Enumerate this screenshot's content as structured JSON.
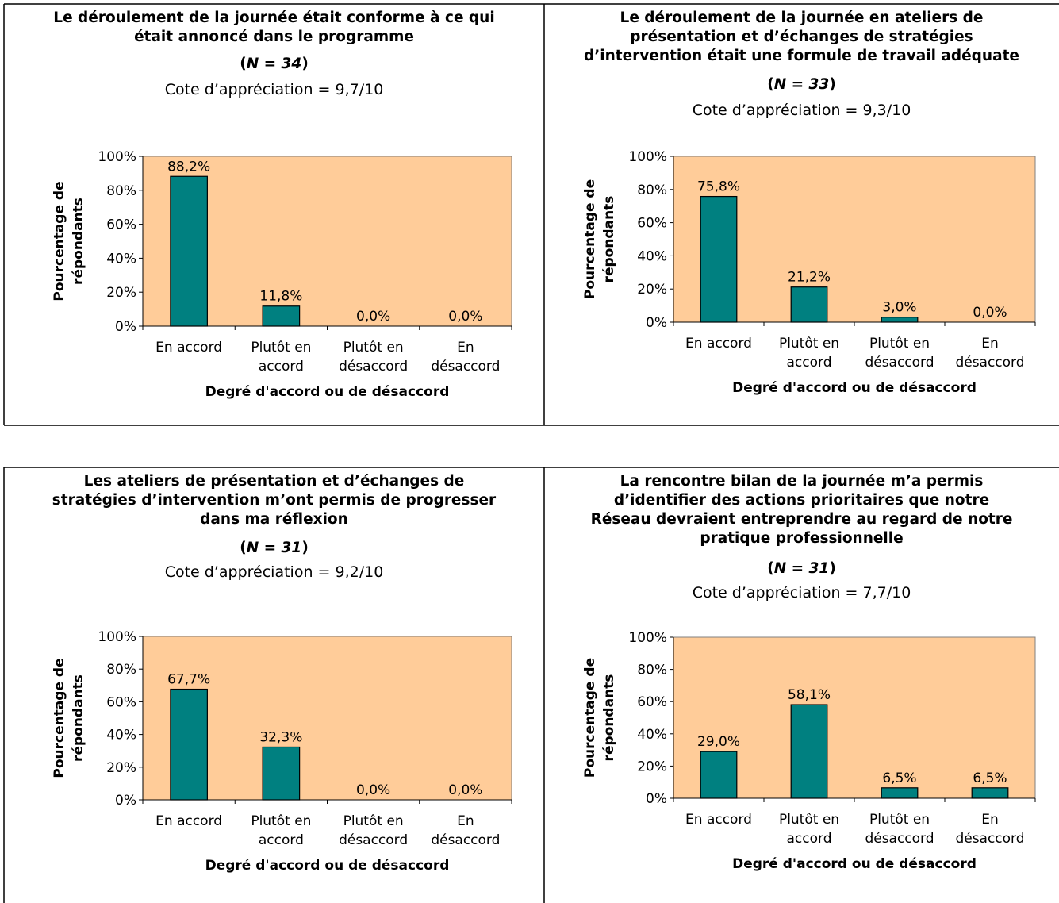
{
  "colors": {
    "plot_bg": "#FFCC99",
    "bar": "#008080",
    "grid_frame": "#808080",
    "border": "#000000"
  },
  "chart_data": [
    {
      "type": "bar",
      "title": "Le déroulement de la journée était conforme à ce qui\nétait annoncé dans le programme",
      "n_open": "(",
      "n_value": "N = 34",
      "n_close": ")",
      "cote": "Cote d’appréciation = 9,7/10",
      "categories": [
        "En accord",
        "Plutôt en\naccord",
        "Plutôt en\ndésaccord",
        "En\ndésaccord"
      ],
      "values": [
        88.2,
        11.8,
        0.0,
        0.0
      ],
      "data_labels": [
        "88,2%",
        "11,8%",
        "0,0%",
        "0,0%"
      ],
      "ylabel": "Pourcentage de\nrépondants",
      "xlabel": "Degré d'accord ou de désaccord",
      "ylim": [
        0,
        100
      ],
      "yticks": [
        "0%",
        "20%",
        "40%",
        "60%",
        "80%",
        "100%"
      ],
      "grid": false,
      "legend": "none"
    },
    {
      "type": "bar",
      "title": "Le déroulement de la journée en ateliers de\nprésentation et d’échanges de stratégies\nd’intervention était une formule de travail adéquate",
      "n_open": "(",
      "n_value": "N = 33",
      "n_close": ")",
      "cote": "Cote d’appréciation = 9,3/10",
      "categories": [
        "En accord",
        "Plutôt en\naccord",
        "Plutôt en\ndésaccord",
        "En\ndésaccord"
      ],
      "values": [
        75.8,
        21.2,
        3.0,
        0.0
      ],
      "data_labels": [
        "75,8%",
        "21,2%",
        "3,0%",
        "0,0%"
      ],
      "ylabel": "Pourcentage de\nrépondants",
      "xlabel": "Degré d'accord ou de désaccord",
      "ylim": [
        0,
        100
      ],
      "yticks": [
        "0%",
        "20%",
        "40%",
        "60%",
        "80%",
        "100%"
      ],
      "grid": false,
      "legend": "none"
    },
    {
      "type": "bar",
      "title": "Les ateliers de présentation et d’échanges de\nstratégies d’intervention m’ont permis de progresser\ndans ma réflexion",
      "n_open": "(",
      "n_value": "N = 31",
      "n_close": ")",
      "cote": "Cote d’appréciation = 9,2/10",
      "categories": [
        "En accord",
        "Plutôt en\naccord",
        "Plutôt en\ndésaccord",
        "En\ndésaccord"
      ],
      "values": [
        67.7,
        32.3,
        0.0,
        0.0
      ],
      "data_labels": [
        "67,7%",
        "32,3%",
        "0,0%",
        "0,0%"
      ],
      "ylabel": "Pourcentage de\nrépondants",
      "xlabel": "Degré d'accord ou de désaccord",
      "ylim": [
        0,
        100
      ],
      "yticks": [
        "0%",
        "20%",
        "40%",
        "60%",
        "80%",
        "100%"
      ],
      "grid": false,
      "legend": "none"
    },
    {
      "type": "bar",
      "title": "La rencontre bilan de la journée m’a permis\nd’identifier des actions prioritaires que notre\nRéseau devraient entreprendre au regard de notre\npratique professionnelle",
      "n_open": "(",
      "n_value": "N = 31",
      "n_close": ")",
      "cote": "Cote d’appréciation = 7,7/10",
      "categories": [
        "En accord",
        "Plutôt en\naccord",
        "Plutôt en\ndésaccord",
        "En\ndésaccord"
      ],
      "values": [
        29.0,
        58.1,
        6.5,
        6.5
      ],
      "data_labels": [
        "29,0%",
        "58,1%",
        "6,5%",
        "6,5%"
      ],
      "ylabel": "Pourcentage de\nrépondants",
      "xlabel": "Degré d'accord ou de désaccord",
      "ylim": [
        0,
        100
      ],
      "yticks": [
        "0%",
        "20%",
        "40%",
        "60%",
        "80%",
        "100%"
      ],
      "grid": false,
      "legend": "none"
    }
  ]
}
